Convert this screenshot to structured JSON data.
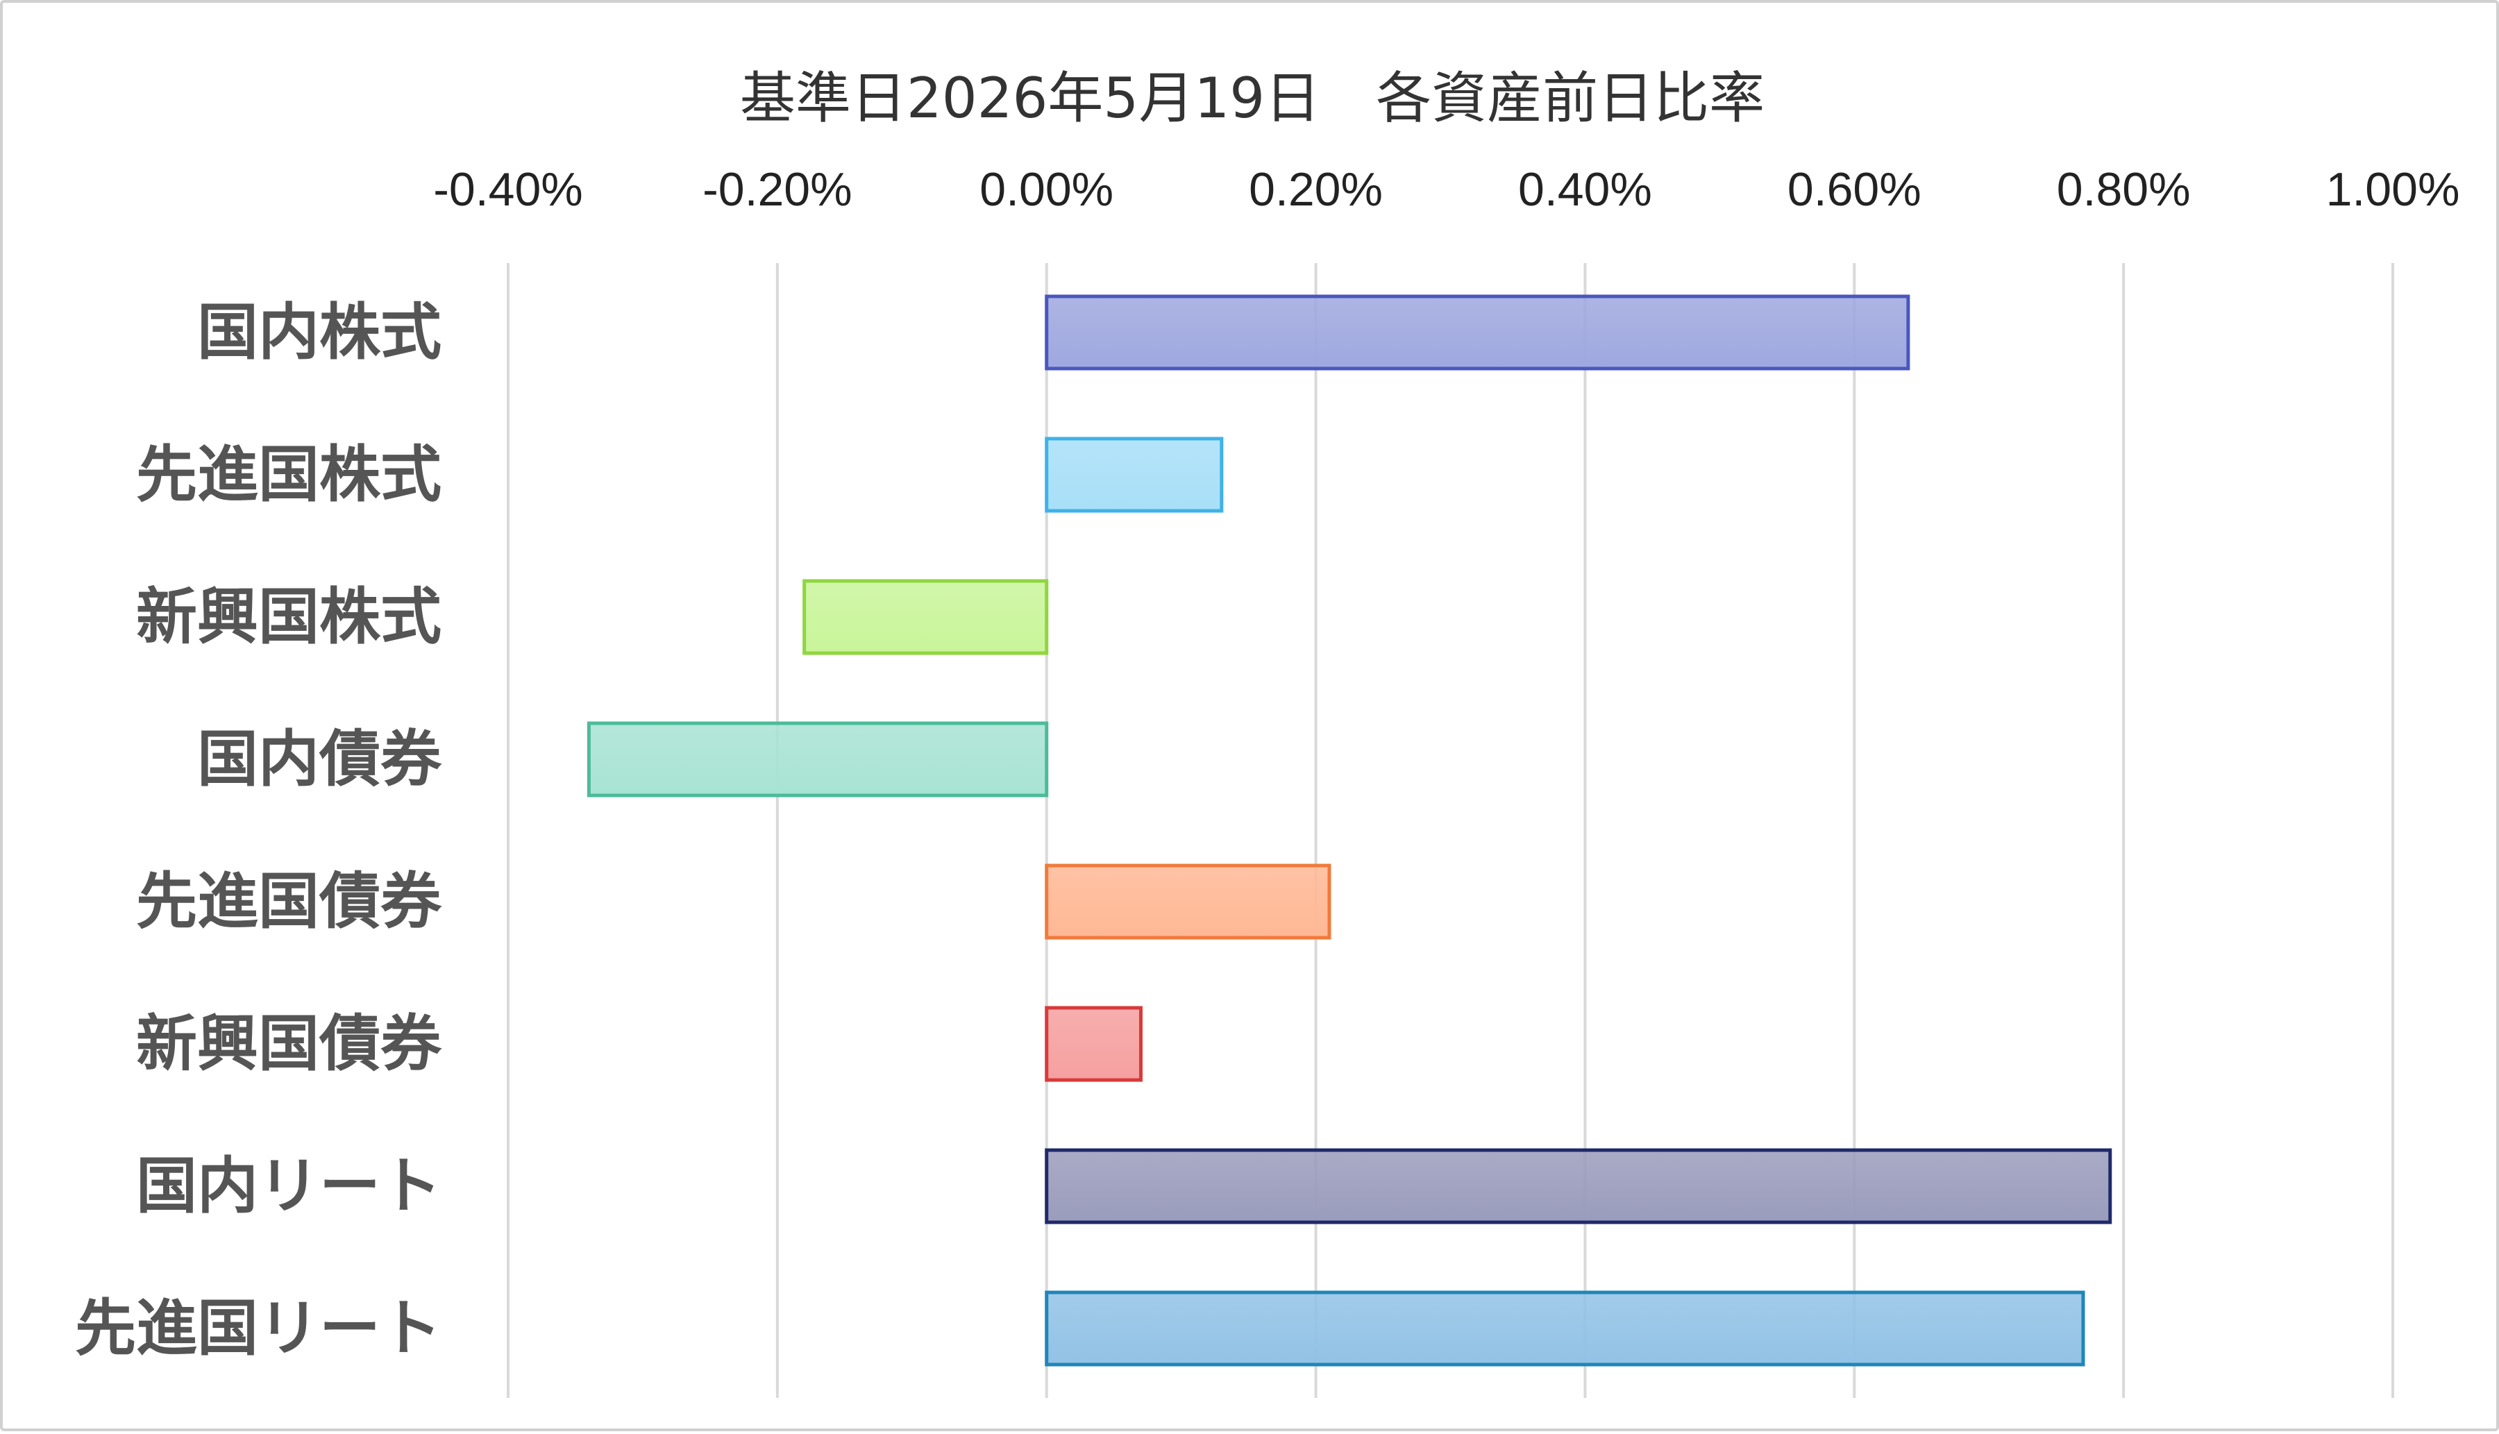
{
  "chart_data": {
    "type": "bar",
    "orientation": "horizontal",
    "title": "基準日2026年5月19日　各資産前日比率",
    "xlabel": "",
    "ylabel": "",
    "xlim": [
      -0.4,
      1.0
    ],
    "x_ticks": [
      -0.4,
      -0.2,
      0.0,
      0.2,
      0.4,
      0.6,
      0.8,
      1.0
    ],
    "x_tick_labels": [
      "-0.40%",
      "-0.20%",
      "0.00%",
      "0.20%",
      "0.40%",
      "0.60%",
      "0.80%",
      "1.00%"
    ],
    "x_axis_position": "top",
    "value_unit": "%",
    "grid": "vertical",
    "legend": "none",
    "categories": [
      "国内株式",
      "先進国株式",
      "新興国株式",
      "国内債券",
      "先進国債券",
      "新興国債券",
      "国内リート",
      "先進国リート"
    ],
    "values": [
      0.64,
      0.13,
      -0.18,
      -0.34,
      0.21,
      0.07,
      0.79,
      0.77
    ],
    "colors": [
      {
        "fill": "#9fa8df",
        "stroke": "#4a57c0"
      },
      {
        "fill": "#a8dff8",
        "stroke": "#3fb2e8"
      },
      {
        "fill": "#c9f59a",
        "stroke": "#8fd640"
      },
      {
        "fill": "#a8e3d3",
        "stroke": "#4cbb9a"
      },
      {
        "fill": "#ffb895",
        "stroke": "#f07a3c"
      },
      {
        "fill": "#f6a0a0",
        "stroke": "#d83a3a"
      },
      {
        "fill": "#9a9cbc",
        "stroke": "#1f2a6a"
      },
      {
        "fill": "#92c2e6",
        "stroke": "#1f86b8"
      }
    ]
  }
}
